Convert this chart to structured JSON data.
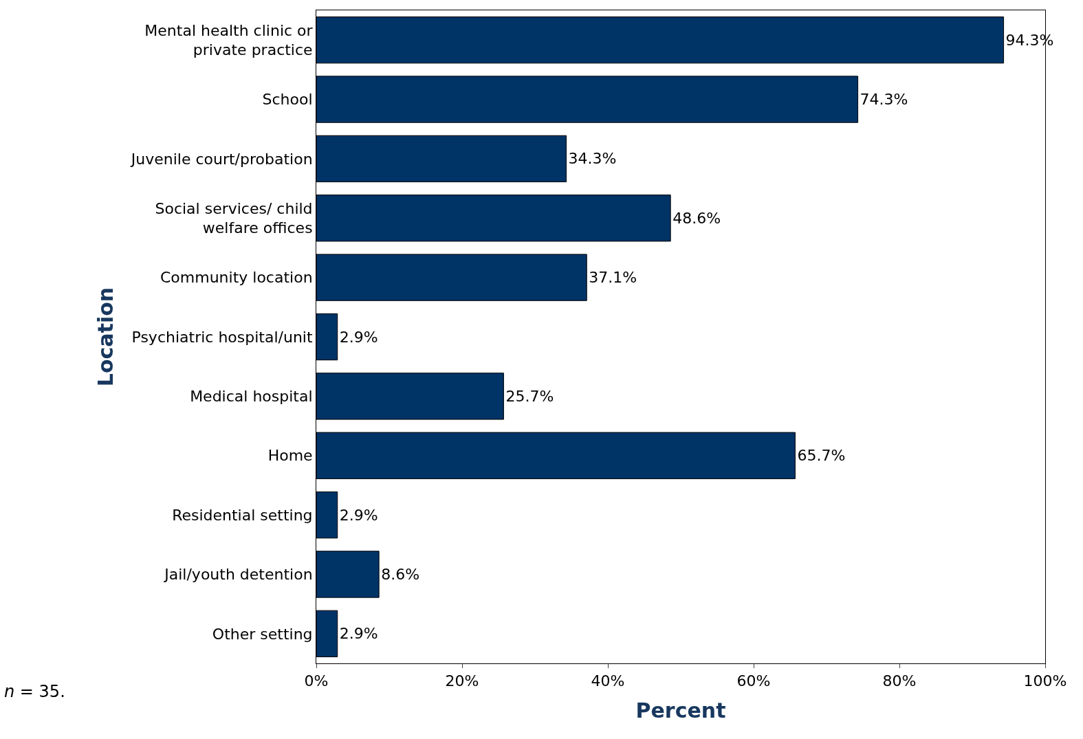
{
  "chart_data": {
    "type": "bar",
    "orientation": "horizontal",
    "xlabel": "Percent",
    "ylabel": "Location",
    "categories": [
      "Mental health clinic or\nprivate practice",
      "School",
      "Juvenile court/probation",
      "Social services/ child\nwelfare offices",
      "Community location",
      "Psychiatric hospital/unit",
      "Medical hospital",
      "Home",
      "Residential setting",
      "Jail/youth detention",
      "Other setting"
    ],
    "values": [
      94.3,
      74.3,
      34.3,
      48.6,
      37.1,
      2.9,
      25.7,
      65.7,
      2.9,
      8.6,
      2.9
    ],
    "value_labels": [
      "94.3%",
      "74.3%",
      "34.3%",
      "48.6%",
      "37.1%",
      "2.9%",
      "25.7%",
      "65.7%",
      "2.9%",
      "8.6%",
      "2.9%"
    ],
    "color": "#003366",
    "xlim": [
      0,
      100
    ],
    "xticks": [
      {
        "value": 0,
        "label": "0%"
      },
      {
        "value": 20,
        "label": "20%"
      },
      {
        "value": 40,
        "label": "40%"
      },
      {
        "value": 60,
        "label": "60%"
      },
      {
        "value": 80,
        "label": "80%"
      },
      {
        "value": 100,
        "label": "100%"
      }
    ],
    "annotations": [
      "n = 35."
    ]
  }
}
